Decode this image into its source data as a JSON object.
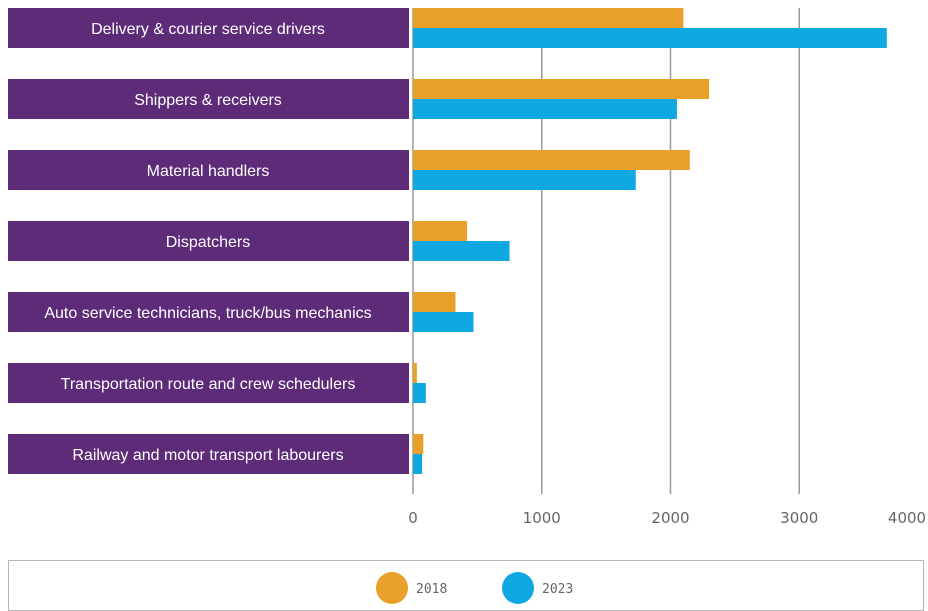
{
  "chart_data": {
    "type": "bar",
    "orientation": "horizontal",
    "categories": [
      "Delivery & courier service drivers",
      "Shippers & receivers",
      "Material handlers",
      "Dispatchers",
      "Auto service technicians, truck/bus mechanics",
      "Transportation route and crew schedulers",
      "Railway and motor transport labourers"
    ],
    "series": [
      {
        "name": "2018",
        "color": "#e8a02a",
        "values": [
          2100,
          2300,
          2150,
          420,
          330,
          30,
          80
        ]
      },
      {
        "name": "2023",
        "color": "#10a8e0",
        "values": [
          3680,
          2050,
          1730,
          750,
          470,
          100,
          70
        ]
      }
    ],
    "xlim": [
      0,
      4000
    ],
    "xticks": [
      0,
      1000,
      2000,
      3000,
      4000
    ],
    "tick_labels": [
      "0",
      "1000",
      "2000",
      "3000",
      "4000"
    ],
    "grid": true,
    "legend_position": "bottom",
    "category_box_color": "#5e2b79"
  }
}
